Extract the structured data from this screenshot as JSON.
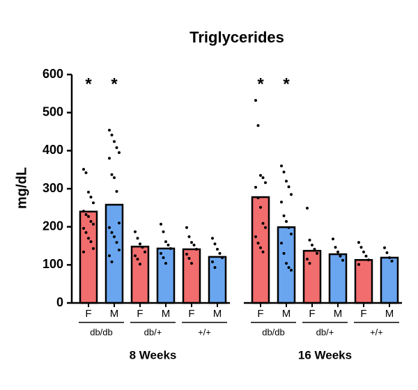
{
  "chart_data": {
    "type": "bar",
    "title": "Triglycerides",
    "ylabel": "mg/dL",
    "ylim": [
      0,
      600
    ],
    "yticks": [
      0,
      100,
      200,
      300,
      400,
      500,
      600
    ],
    "groups": [
      {
        "label": "8 Weeks",
        "genotypes": [
          {
            "label": "db/db",
            "bars": [
              {
                "category": "F",
                "color": "#f26d6d",
                "value": 240,
                "annotation": "*",
                "points": [
                  351,
                  342,
                  291,
                  278,
                  263,
                  241,
                  232,
                  227,
                  214,
                  207,
                  196,
                  185,
                  170,
                  161,
                  143,
                  134
                ]
              },
              {
                "category": "M",
                "color": "#6aa6f0",
                "value": 258,
                "annotation": "*",
                "points": [
                  454,
                  441,
                  424,
                  408,
                  395,
                  380,
                  337,
                  329,
                  293,
                  210,
                  198,
                  185,
                  174,
                  159,
                  139,
                  124,
                  108
                ]
              }
            ]
          },
          {
            "label": "db/+",
            "bars": [
              {
                "category": "F",
                "color": "#f26d6d",
                "value": 148,
                "points": [
                  187,
                  170,
                  155,
                  146,
                  134,
                  124,
                  115,
                  102
                ]
              },
              {
                "category": "M",
                "color": "#6aa6f0",
                "value": 143,
                "points": [
                  207,
                  187,
                  161,
                  152,
                  143,
                  130,
                  119,
                  104
                ]
              }
            ]
          },
          {
            "label": "+/+",
            "bars": [
              {
                "category": "F",
                "color": "#f26d6d",
                "value": 141,
                "points": [
                  198,
                  174,
                  159,
                  152,
                  141,
                  128,
                  117,
                  104
                ]
              },
              {
                "category": "M",
                "color": "#6aa6f0",
                "value": 121,
                "points": [
                  170,
                  155,
                  141,
                  130,
                  119,
                  108,
                  93
                ]
              }
            ]
          }
        ]
      },
      {
        "label": "16 Weeks",
        "genotypes": [
          {
            "label": "db/db",
            "bars": [
              {
                "category": "F",
                "color": "#f26d6d",
                "value": 278,
                "annotation": "*",
                "points": [
                  532,
                  466,
                  335,
                  329,
                  316,
                  304,
                  276,
                  251,
                  209,
                  198,
                  174,
                  157,
                  145,
                  134
                ]
              },
              {
                "category": "M",
                "color": "#6aa6f0",
                "value": 199,
                "annotation": "*",
                "points": [
                  360,
                  344,
                  320,
                  305,
                  285,
                  265,
                  229,
                  214,
                  198,
                  181,
                  157,
                  130,
                  104,
                  93,
                  86
                ]
              }
            ]
          },
          {
            "label": "db/+",
            "bars": [
              {
                "category": "F",
                "color": "#f26d6d",
                "value": 137,
                "points": [
                  249,
                  165,
                  152,
                  141,
                  130,
                  115,
                  104
                ]
              },
              {
                "category": "M",
                "color": "#6aa6f0",
                "value": 128,
                "points": [
                  168,
                  146,
                  134,
                  123,
                  112
                ]
              }
            ]
          },
          {
            "label": "+/+",
            "bars": [
              {
                "category": "F",
                "color": "#f26d6d",
                "value": 113,
                "points": [
                  159,
                  146,
                  134,
                  123,
                  113,
                  101
                ]
              },
              {
                "category": "M",
                "color": "#6aa6f0",
                "value": 119,
                "points": [
                  145,
                  132,
                  119,
                  110
                ]
              }
            ]
          }
        ]
      }
    ]
  }
}
